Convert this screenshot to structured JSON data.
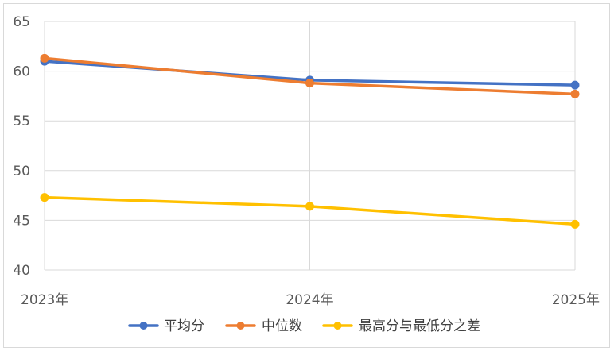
{
  "chart_data": {
    "type": "line",
    "categories": [
      "2023年",
      "2024年",
      "2025年"
    ],
    "series": [
      {
        "name": "平均分",
        "color": "#4472C4",
        "values": [
          61.0,
          59.1,
          58.6
        ]
      },
      {
        "name": "中位数",
        "color": "#ED7D31",
        "values": [
          61.3,
          58.8,
          57.7
        ]
      },
      {
        "name": "最高分与最低分之差",
        "color": "#FFC000",
        "values": [
          47.3,
          46.4,
          44.6
        ]
      }
    ],
    "ylim": [
      40,
      65
    ],
    "yticks": [
      "40",
      "45",
      "50",
      "55",
      "60",
      "65"
    ],
    "grid": true,
    "legend_position": "bottom"
  }
}
